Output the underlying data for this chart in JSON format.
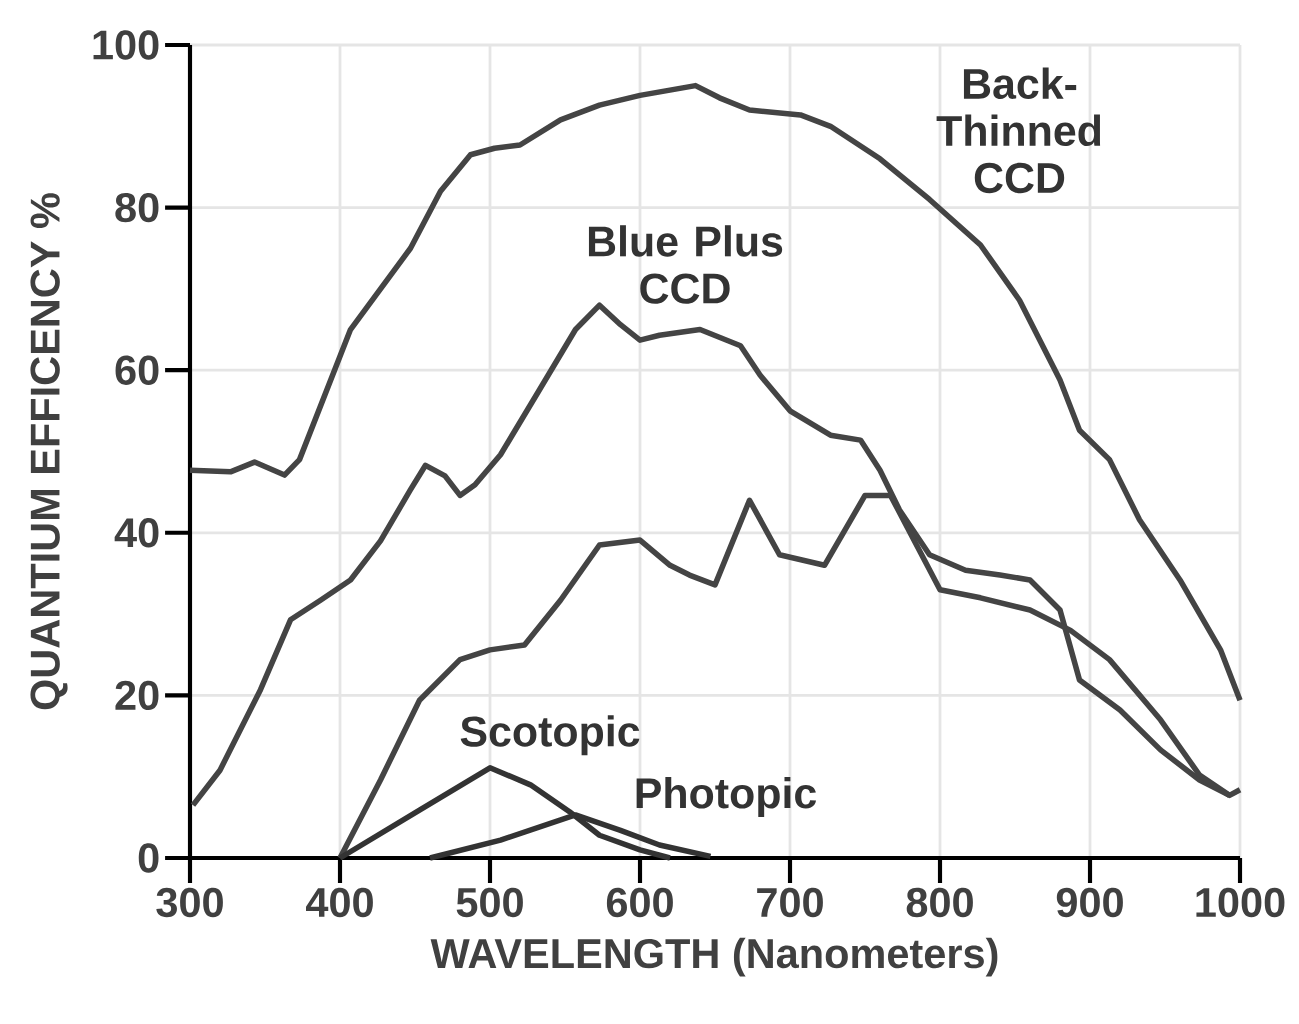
{
  "chart_data": {
    "type": "line",
    "xlabel": "WAVELENGTH (Nanometers)",
    "ylabel": "QUANTIUM EFFICENCY %",
    "xlim": [
      300,
      1000
    ],
    "ylim": [
      0,
      100
    ],
    "xticks": [
      300,
      400,
      500,
      600,
      700,
      800,
      900,
      1000
    ],
    "yticks": [
      0,
      20,
      40,
      60,
      80,
      100
    ],
    "grid": true,
    "series": [
      {
        "name": "Back-Thinned CCD",
        "color": "#444444",
        "x": [
          300,
          327,
          343,
          363,
          373,
          407,
          447,
          467,
          487,
          503,
          520,
          547,
          573,
          600,
          637,
          653,
          673,
          707,
          727,
          760,
          793,
          827,
          853,
          880,
          893,
          913,
          933,
          960,
          987,
          1000
        ],
        "values": [
          47.7,
          47.5,
          48.7,
          47.1,
          49,
          65,
          75,
          82,
          86.5,
          87.3,
          87.7,
          90.8,
          92.6,
          93.8,
          95,
          93.5,
          92,
          91.4,
          90,
          86,
          81,
          75.4,
          68.6,
          58.8,
          52.6,
          49,
          41.6,
          34.2,
          25.6,
          19.4
        ]
      },
      {
        "name": "Blue Plus CCD",
        "color": "#444444",
        "x": [
          302,
          320,
          347,
          367,
          387,
          407,
          427,
          447,
          457,
          470,
          480,
          490,
          507,
          533,
          557,
          573,
          587,
          600,
          613,
          640,
          667,
          680,
          700,
          727,
          747,
          760,
          773,
          793,
          817,
          840,
          860,
          880,
          893,
          920,
          947,
          973,
          993,
          1000
        ],
        "values": [
          6.5,
          10.8,
          20.7,
          29.3,
          31.7,
          34.2,
          39,
          45.3,
          48.3,
          47,
          44.6,
          45.9,
          49.6,
          57.6,
          65,
          68,
          65.6,
          63.7,
          64.3,
          65,
          63,
          59.4,
          55,
          52,
          51.4,
          47.7,
          42.8,
          37.3,
          35.4,
          34.8,
          34.2,
          30.5,
          21.9,
          18.2,
          13.3,
          9.6,
          7.7,
          8.4
        ]
      },
      {
        "color": "#444444",
        "x": [
          400,
          427,
          453,
          480,
          500,
          523,
          547,
          573,
          600,
          620,
          633,
          650,
          673,
          693,
          723,
          750,
          767,
          800,
          827,
          860,
          887,
          913,
          947,
          973,
          993
        ],
        "values": [
          0,
          9.6,
          19.4,
          24.4,
          25.6,
          26.2,
          31.7,
          38.5,
          39.1,
          36,
          34.8,
          33.6,
          44,
          37.3,
          36,
          44.6,
          44.6,
          33,
          32,
          30.5,
          28,
          24.4,
          17,
          10.2,
          7.7
        ]
      },
      {
        "name": "Scotopic",
        "color": "#333333",
        "x": [
          400,
          453,
          500,
          527,
          553,
          573,
          600,
          620
        ],
        "values": [
          0,
          5.9,
          11.1,
          9,
          5.7,
          2.8,
          1,
          0
        ]
      },
      {
        "name": "Photopic",
        "color": "#333333",
        "x": [
          460,
          507,
          557,
          587,
          613,
          647
        ],
        "values": [
          0,
          2.2,
          5.3,
          3.4,
          1.6,
          0.2
        ]
      }
    ]
  }
}
